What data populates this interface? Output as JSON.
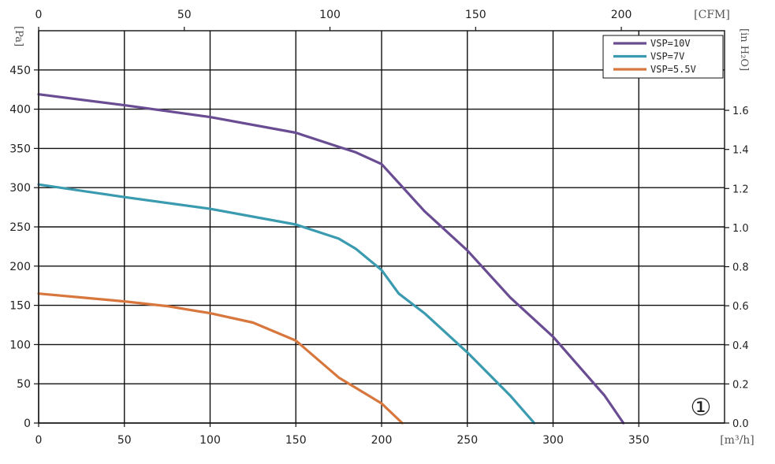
{
  "chart_data": {
    "type": "line",
    "xlabel": "[m³/h]",
    "x2label": "[CFM]",
    "ylabel": "[Pa]",
    "y2label": "[in H₂O]",
    "xlim": [
      0,
      400
    ],
    "ylim": [
      0,
      500
    ],
    "x_ticks": [
      "0",
      "50",
      "100",
      "150",
      "200",
      "250",
      "300",
      "350"
    ],
    "y_ticks": [
      "0",
      "50",
      "100",
      "150",
      "200",
      "250",
      "300",
      "350",
      "400",
      "450"
    ],
    "x2_ticks": [
      "0",
      "50",
      "100",
      "150",
      "200"
    ],
    "y2_ticks": [
      "0.0",
      "0.2",
      "0.4",
      "0.6",
      "0.8",
      "1.0",
      "1.2",
      "1.4",
      "1.6"
    ],
    "grid": true,
    "legend_position": "top-right",
    "annotation": "①",
    "series": [
      {
        "name": "VSP=10V",
        "color": "#6a4c93",
        "x": [
          0,
          50,
          100,
          150,
          175,
          185,
          200,
          225,
          250,
          275,
          300,
          320,
          330,
          341
        ],
        "y": [
          419,
          405,
          390,
          370,
          352,
          345,
          330,
          270,
          220,
          160,
          110,
          60,
          35,
          0
        ]
      },
      {
        "name": "VSP=7V",
        "color": "#3a9bb0",
        "x": [
          0,
          50,
          100,
          150,
          175,
          185,
          200,
          210,
          225,
          250,
          275,
          289
        ],
        "y": [
          304,
          288,
          273,
          253,
          235,
          222,
          195,
          165,
          140,
          90,
          35,
          0
        ]
      },
      {
        "name": "VSP=5.5V",
        "color": "#d7773d",
        "x": [
          0,
          25,
          50,
          75,
          100,
          125,
          150,
          175,
          200,
          212
        ],
        "y": [
          165,
          160,
          155,
          149,
          140,
          128,
          105,
          58,
          25,
          0
        ]
      }
    ]
  }
}
